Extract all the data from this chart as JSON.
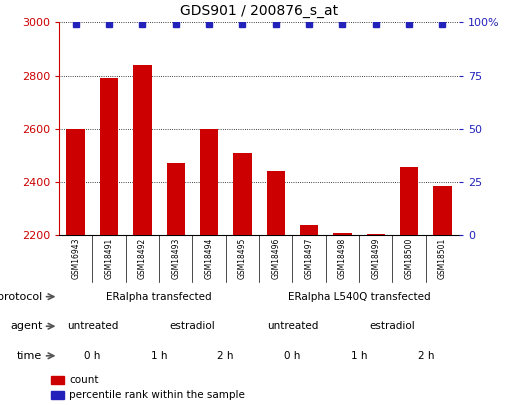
{
  "title": "GDS901 / 200876_s_at",
  "samples": [
    "GSM16943",
    "GSM18491",
    "GSM18492",
    "GSM18493",
    "GSM18494",
    "GSM18495",
    "GSM18496",
    "GSM18497",
    "GSM18498",
    "GSM18499",
    "GSM18500",
    "GSM18501"
  ],
  "counts": [
    2600,
    2790,
    2840,
    2470,
    2600,
    2510,
    2440,
    2240,
    2210,
    2205,
    2455,
    2385
  ],
  "percentile_ranks": [
    99,
    99,
    99,
    99,
    99,
    99,
    99,
    99,
    99,
    99,
    99,
    99
  ],
  "ylim_left": [
    2200,
    3000
  ],
  "ylim_right": [
    0,
    100
  ],
  "yticks_left": [
    2200,
    2400,
    2600,
    2800,
    3000
  ],
  "yticks_right": [
    0,
    25,
    50,
    75,
    100
  ],
  "ytick_right_labels": [
    "0",
    "25",
    "50",
    "75",
    "100%"
  ],
  "bar_color": "#cc0000",
  "dot_color": "#2222bb",
  "bar_width": 0.55,
  "background_color": "#ffffff",
  "xticklabel_bg": "#cccccc",
  "protocol_row": {
    "label": "protocol",
    "groups": [
      {
        "text": "ERalpha transfected",
        "start": 0,
        "end": 6,
        "color": "#aaddaa"
      },
      {
        "text": "ERalpha L540Q transfected",
        "start": 6,
        "end": 12,
        "color": "#66bb66"
      }
    ]
  },
  "agent_row": {
    "label": "agent",
    "groups": [
      {
        "text": "untreated",
        "start": 0,
        "end": 2,
        "color": "#aaaaee"
      },
      {
        "text": "estradiol",
        "start": 2,
        "end": 6,
        "color": "#8888dd"
      },
      {
        "text": "untreated",
        "start": 6,
        "end": 8,
        "color": "#aaaaee"
      },
      {
        "text": "estradiol",
        "start": 8,
        "end": 12,
        "color": "#8888dd"
      }
    ]
  },
  "time_row": {
    "label": "time",
    "groups": [
      {
        "text": "0 h",
        "start": 0,
        "end": 2,
        "color": "#ffdddd"
      },
      {
        "text": "1 h",
        "start": 2,
        "end": 4,
        "color": "#ffaaaa"
      },
      {
        "text": "2 h",
        "start": 4,
        "end": 6,
        "color": "#ee8888"
      },
      {
        "text": "0 h",
        "start": 6,
        "end": 8,
        "color": "#ffdddd"
      },
      {
        "text": "1 h",
        "start": 8,
        "end": 10,
        "color": "#ffaaaa"
      },
      {
        "text": "2 h",
        "start": 10,
        "end": 12,
        "color": "#ee8888"
      }
    ]
  },
  "legend_items": [
    {
      "label": "count",
      "color": "#cc0000"
    },
    {
      "label": "percentile rank within the sample",
      "color": "#2222bb"
    }
  ],
  "fig_width": 5.13,
  "fig_height": 4.05,
  "dpi": 100
}
